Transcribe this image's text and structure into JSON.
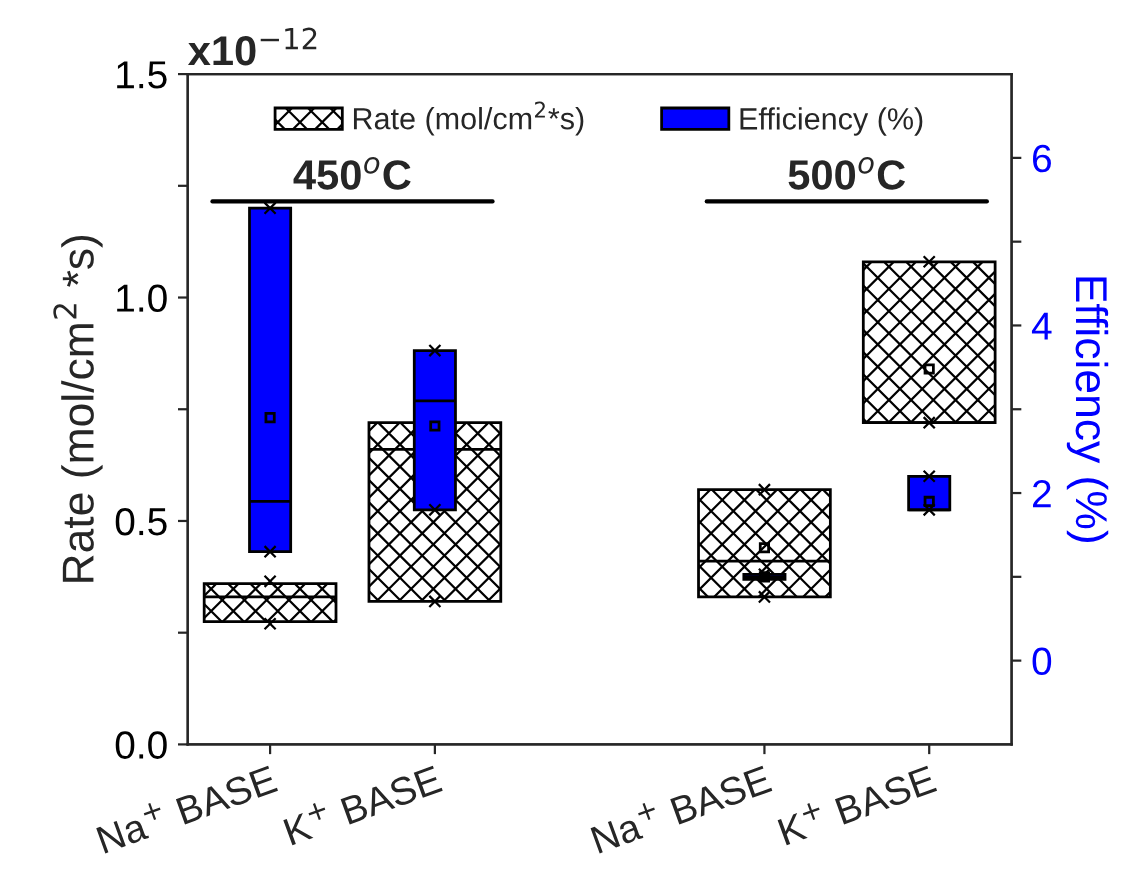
{
  "chart_data": {
    "type": "box",
    "categories": [
      "Na$^{+}$ BASE",
      "K$^{+}$ BASE",
      null,
      "Na$^{+}$ BASE",
      "K$^{+}$ BASE"
    ],
    "ylabel": "Rate (mol/cm$^{2}$ *s)",
    "y2label": "Efficiency (%)",
    "ylim": [
      0,
      1.5
    ],
    "yticks": [
      {
        "value": 0,
        "label": "0.0"
      },
      {
        "value": 0.25,
        "label": null
      },
      {
        "value": 0.5,
        "label": "0.5"
      },
      {
        "value": 0.75,
        "label": null
      },
      {
        "value": 1.0,
        "label": "1.0"
      },
      {
        "value": 1.25,
        "label": null
      },
      {
        "value": 1.5,
        "label": "1.5"
      }
    ],
    "y2lim": [
      -1,
      7
    ],
    "y2ticks": [
      0,
      {
        "value": 1,
        "label": null
      },
      2,
      {
        "value": 3,
        "label": null
      },
      4,
      {
        "value": 5,
        "label": null
      },
      6
    ],
    "series": [
      {
        "name": "Rate (mol/cm$^{2}$*s)",
        "color": "#000000",
        "boxes": [
          {
            "low": 0.275,
            "q1": 0.275,
            "median": 0.33,
            "q3": 0.36,
            "high": 0.36,
            "outliers": [
              0.27,
              0.365
            ]
          },
          {
            "low": 0.32,
            "q1": 0.32,
            "median": 0.66,
            "q3": 0.72,
            "high": 0.72,
            "mean": 0.66,
            "outliers": [
              0.32
            ]
          },
          null,
          {
            "low": 0.33,
            "q1": 0.33,
            "median": 0.41,
            "q3": 0.57,
            "high": 0.57,
            "mean": 0.44,
            "outliers": [
              0.33,
              0.57
            ]
          },
          {
            "low": 0.72,
            "q1": 0.72,
            "median": 0.72,
            "q3": 1.08,
            "high": 1.08,
            "mean": 0.84,
            "outliers": [
              0.72,
              1.08
            ]
          }
        ]
      },
      {
        "name": "Efficiency (%)",
        "color": "#0000ff",
        "axis": "y2",
        "boxes": [
          {
            "low": 1.3,
            "q1": 1.3,
            "median": 1.9,
            "q3": 5.4,
            "high": 5.4,
            "mean": 2.9,
            "outliers": [
              1.3,
              5.4
            ]
          },
          {
            "low": 1.8,
            "q1": 1.8,
            "median": 3.1,
            "q3": 3.7,
            "high": 3.7,
            "mean": 2.8,
            "outliers": [
              1.8,
              3.7
            ]
          },
          null,
          {
            "low": 0.97,
            "q1": 0.97,
            "median": 1.0,
            "q3": 1.03,
            "high": 1.03,
            "mean": 1.0,
            "outliers": [
              1.03
            ]
          },
          {
            "low": 1.8,
            "q1": 1.8,
            "median": 1.8,
            "q3": 2.2,
            "high": 2.2,
            "mean": 1.9,
            "outliers": [
              1.8,
              2.2
            ]
          }
        ]
      }
    ],
    "annotations": [
      "x10$^{−12}$",
      "450$^{o}$C",
      "500$^{o}$C"
    ],
    "legend": "top",
    "grid": false
  }
}
